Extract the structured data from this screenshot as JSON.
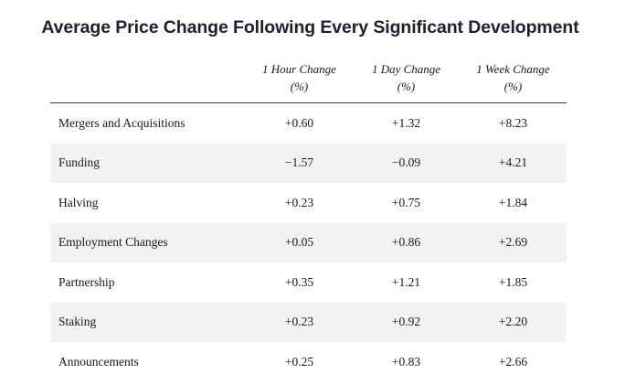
{
  "chart_data": {
    "type": "table",
    "title": "Average Price Change Following Every Significant Development",
    "columns": [
      {
        "line1": "1 Hour Change",
        "line2": "(%)"
      },
      {
        "line1": "1 Day Change",
        "line2": "(%)"
      },
      {
        "line1": "1 Week Change",
        "line2": "(%)"
      }
    ],
    "rows": [
      {
        "category": "Mergers and Acquisitions",
        "values": [
          "+0.60",
          "+1.32",
          "+8.23"
        ]
      },
      {
        "category": "Funding",
        "values": [
          "−1.57",
          "−0.09",
          "+4.21"
        ]
      },
      {
        "category": "Halving",
        "values": [
          "+0.23",
          "+0.75",
          "+1.84"
        ]
      },
      {
        "category": "Employment Changes",
        "values": [
          "+0.05",
          "+0.86",
          "+2.69"
        ]
      },
      {
        "category": "Partnership",
        "values": [
          "+0.35",
          "+1.21",
          "+1.85"
        ]
      },
      {
        "category": "Staking",
        "values": [
          "+0.23",
          "+0.92",
          "+2.20"
        ]
      },
      {
        "category": "Announcements",
        "values": [
          "+0.25",
          "+0.83",
          "+2.66"
        ]
      }
    ],
    "row_stripe_color": "#f2f2f2",
    "title_color": "#1c2130"
  }
}
